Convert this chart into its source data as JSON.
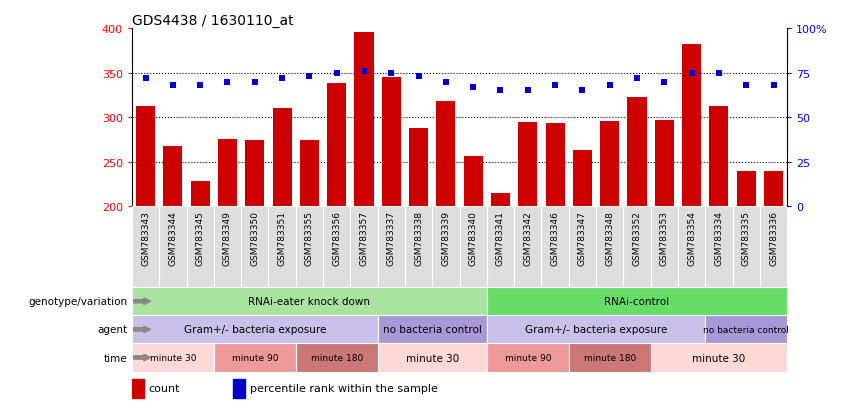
{
  "title": "GDS4438 / 1630110_at",
  "samples": [
    "GSM783343",
    "GSM783344",
    "GSM783345",
    "GSM783349",
    "GSM783350",
    "GSM783351",
    "GSM783355",
    "GSM783356",
    "GSM783357",
    "GSM783337",
    "GSM783338",
    "GSM783339",
    "GSM783340",
    "GSM783341",
    "GSM783342",
    "GSM783346",
    "GSM783347",
    "GSM783348",
    "GSM783352",
    "GSM783353",
    "GSM783354",
    "GSM783334",
    "GSM783335",
    "GSM783336"
  ],
  "counts": [
    312,
    268,
    228,
    276,
    274,
    310,
    274,
    338,
    395,
    345,
    288,
    318,
    256,
    215,
    295,
    293,
    263,
    296,
    323,
    297,
    382,
    313,
    240,
    240
  ],
  "percentile": [
    72,
    68,
    68,
    70,
    70,
    72,
    73,
    75,
    76,
    75,
    73,
    70,
    67,
    65,
    65,
    68,
    65,
    68,
    72,
    70,
    75,
    75,
    68,
    68
  ],
  "ylim_left": [
    200,
    400
  ],
  "ylim_right": [
    0,
    100
  ],
  "yticks_left": [
    200,
    250,
    300,
    350,
    400
  ],
  "yticks_right": [
    0,
    25,
    50,
    75,
    100
  ],
  "bar_color": "#cc0000",
  "dot_color": "#0000cc",
  "title_fontsize": 10,
  "genotype_groups": [
    {
      "label": "RNAi-eater knock down",
      "start": 0,
      "end": 13,
      "color": "#a8e4a0"
    },
    {
      "label": "RNAi-control",
      "start": 13,
      "end": 24,
      "color": "#66dd66"
    }
  ],
  "agent_groups": [
    {
      "label": "Gram+/- bacteria exposure",
      "start": 0,
      "end": 9,
      "color": "#c8c0e8"
    },
    {
      "label": "no bacteria control",
      "start": 9,
      "end": 13,
      "color": "#a898d8"
    },
    {
      "label": "Gram+/- bacteria exposure",
      "start": 13,
      "end": 21,
      "color": "#c8c0e8"
    },
    {
      "label": "no bacteria control",
      "start": 21,
      "end": 24,
      "color": "#a898d8"
    }
  ],
  "time_groups": [
    {
      "label": "minute 30",
      "start": 0,
      "end": 3,
      "color": "#ffd8d8"
    },
    {
      "label": "minute 90",
      "start": 3,
      "end": 6,
      "color": "#ee9999"
    },
    {
      "label": "minute 180",
      "start": 6,
      "end": 9,
      "color": "#cc7777"
    },
    {
      "label": "minute 30",
      "start": 9,
      "end": 13,
      "color": "#ffd8d8"
    },
    {
      "label": "minute 90",
      "start": 13,
      "end": 16,
      "color": "#ee9999"
    },
    {
      "label": "minute 180",
      "start": 16,
      "end": 19,
      "color": "#cc7777"
    },
    {
      "label": "minute 30",
      "start": 19,
      "end": 24,
      "color": "#ffd8d8"
    }
  ],
  "row_labels": [
    "genotype/variation",
    "agent",
    "time"
  ],
  "legend_items": [
    {
      "color": "#cc0000",
      "label": "count"
    },
    {
      "color": "#0000cc",
      "label": "percentile rank within the sample"
    }
  ],
  "label_fontsize": 8,
  "tick_label_bg": "#dddddd"
}
